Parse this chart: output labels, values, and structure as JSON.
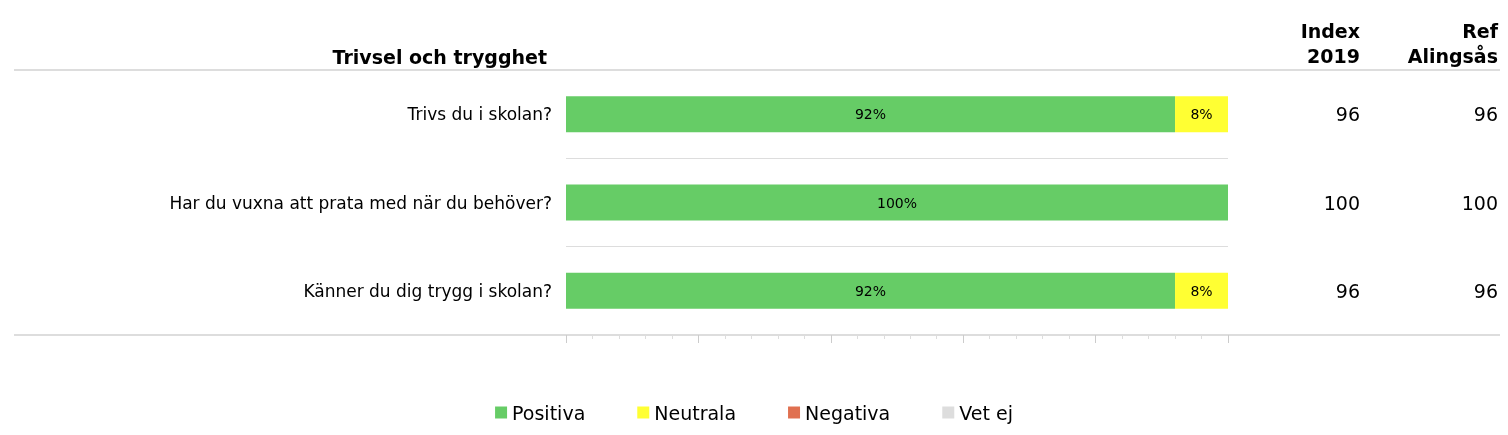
{
  "chart_data": {
    "type": "bar",
    "orientation": "horizontal",
    "stacked": true,
    "title": "Trivsel och trygghet",
    "categories": [
      "Trivs du i skolan?",
      "Har du vuxna att prata med när du behöver?",
      "Känner du dig trygg i skolan?"
    ],
    "series": [
      {
        "name": "Positiva",
        "color": "#66cc66",
        "values": [
          92,
          100,
          92
        ],
        "value_labels": [
          "92%",
          "100%",
          "92%"
        ]
      },
      {
        "name": "Neutrala",
        "color": "#ffff33",
        "values": [
          8,
          0,
          8
        ],
        "value_labels": [
          "8%",
          null,
          "8%"
        ]
      },
      {
        "name": "Negativa",
        "color": "#e07050",
        "values": [
          0,
          0,
          0
        ],
        "value_labels": [
          null,
          null,
          null
        ]
      },
      {
        "name": "Vet ej",
        "color": "#dddddd",
        "values": [
          0,
          0,
          0
        ],
        "value_labels": [
          null,
          null,
          null
        ]
      }
    ],
    "xlim": [
      0,
      100
    ],
    "xticks": [
      {
        "value": 0,
        "label": null
      },
      {
        "value": 20,
        "label": null
      },
      {
        "value": 40,
        "label": null
      },
      {
        "value": 60,
        "label": null
      },
      {
        "value": 80,
        "label": null
      },
      {
        "value": 100,
        "label": null
      }
    ],
    "tick_labels": "y",
    "grid": "y",
    "legend": "bottom",
    "annotations": [
      "Index\n2019",
      "Ref\nAlingsås",
      "96",
      "96",
      "100",
      "100",
      "96",
      "96"
    ]
  }
}
